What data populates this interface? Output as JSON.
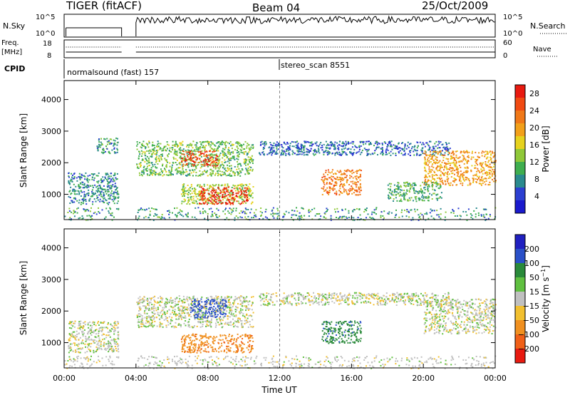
{
  "header": {
    "title": "TIGER (fitACF)",
    "beam": "Beam 04",
    "date": "25/Oct/2009"
  },
  "summary_panels": {
    "nsky": {
      "label": "N.Sky",
      "tick_top": "10^5",
      "tick_bottom": "10^0"
    },
    "nsearch": {
      "label": "N.Search",
      "tick_top": "10^5",
      "tick_bottom": "10^0"
    },
    "freq": {
      "label_line1": "Freq.",
      "label_line2": "[MHz]",
      "tick_top": "18",
      "tick_bottom": "8"
    },
    "nave": {
      "label": "Nave",
      "tick_top": "60",
      "tick_bottom": "0"
    },
    "cpid": {
      "label": "CPID",
      "modes": [
        "normalsound (fast) 157",
        "stereo_scan 8551"
      ]
    }
  },
  "chart_data": [
    {
      "type": "heatmap",
      "name": "power",
      "xlabel": "Time UT",
      "ylabel": "Slant Range [km]",
      "x_ticks": [
        "00:00",
        "04:00",
        "08:00",
        "12:00",
        "16:00",
        "20:00",
        "00:00"
      ],
      "x_range_hours": [
        0,
        24
      ],
      "y_ticks": [
        1000,
        2000,
        3000,
        4000
      ],
      "ylim": [
        200,
        4600
      ],
      "colorbar": {
        "label": "Power [dB]",
        "ticks": [
          4,
          8,
          12,
          16,
          20,
          24,
          28
        ],
        "range": [
          0,
          30
        ],
        "colors": [
          "#1a1acd",
          "#2c3fd1",
          "#2a8a8e",
          "#3fae4f",
          "#8fc838",
          "#e6d21e",
          "#f2a01a",
          "#f07818",
          "#f04a12",
          "#e81a10"
        ]
      },
      "echo_regions": [
        {
          "t": [
            0.2,
            3.0
          ],
          "r": [
            700,
            1700
          ],
          "power": 8
        },
        {
          "t": [
            1.8,
            3.0
          ],
          "r": [
            2300,
            2800
          ],
          "power": 9
        },
        {
          "t": [
            4.0,
            10.5
          ],
          "r": [
            1600,
            2700
          ],
          "power": 12
        },
        {
          "t": [
            6.5,
            8.5
          ],
          "r": [
            1900,
            2400
          ],
          "power": 26
        },
        {
          "t": [
            6.5,
            10.5
          ],
          "r": [
            700,
            1350
          ],
          "power": 14
        },
        {
          "t": [
            7.5,
            10.2
          ],
          "r": [
            700,
            1250
          ],
          "power": 28
        },
        {
          "t": [
            10.8,
            21.5
          ],
          "r": [
            2250,
            2700
          ],
          "power": 6
        },
        {
          "t": [
            14.3,
            16.5
          ],
          "r": [
            1000,
            1800
          ],
          "power": 22
        },
        {
          "t": [
            20.0,
            24.0
          ],
          "r": [
            1300,
            2400
          ],
          "power": 20
        },
        {
          "t": [
            18.0,
            21.0
          ],
          "r": [
            800,
            1400
          ],
          "power": 10
        }
      ]
    },
    {
      "type": "heatmap",
      "name": "velocity",
      "xlabel": "Time UT",
      "ylabel": "Slant Range [km]",
      "x_ticks": [
        "00:00",
        "04:00",
        "08:00",
        "12:00",
        "16:00",
        "20:00",
        "00:00"
      ],
      "x_range_hours": [
        0,
        24
      ],
      "y_ticks": [
        1000,
        2000,
        3000,
        4000
      ],
      "ylim": [
        200,
        4600
      ],
      "colorbar": {
        "label": "Velocity [m s^-1]",
        "ticks": [
          200,
          100,
          50,
          15,
          -15,
          -50,
          -100,
          -200
        ],
        "colors": [
          "#2020c0",
          "#2a50c8",
          "#2a8a3a",
          "#60c040",
          "#c0c0c0",
          "#f2c030",
          "#f09020",
          "#f06018",
          "#e81a10"
        ]
      },
      "echo_regions": [
        {
          "t": [
            0.2,
            3.0
          ],
          "r": [
            700,
            1700
          ],
          "velocity": 0
        },
        {
          "t": [
            4.0,
            10.5
          ],
          "r": [
            1500,
            2500
          ],
          "velocity": 0
        },
        {
          "t": [
            7.0,
            9.0
          ],
          "r": [
            1800,
            2400
          ],
          "velocity": 150
        },
        {
          "t": [
            6.5,
            10.5
          ],
          "r": [
            700,
            1300
          ],
          "velocity": -80
        },
        {
          "t": [
            10.8,
            21.5
          ],
          "r": [
            2200,
            2600
          ],
          "velocity": 0
        },
        {
          "t": [
            14.3,
            16.5
          ],
          "r": [
            1000,
            1700
          ],
          "velocity": 80
        },
        {
          "t": [
            20.0,
            24.0
          ],
          "r": [
            1300,
            2400
          ],
          "velocity": 0
        }
      ]
    }
  ]
}
